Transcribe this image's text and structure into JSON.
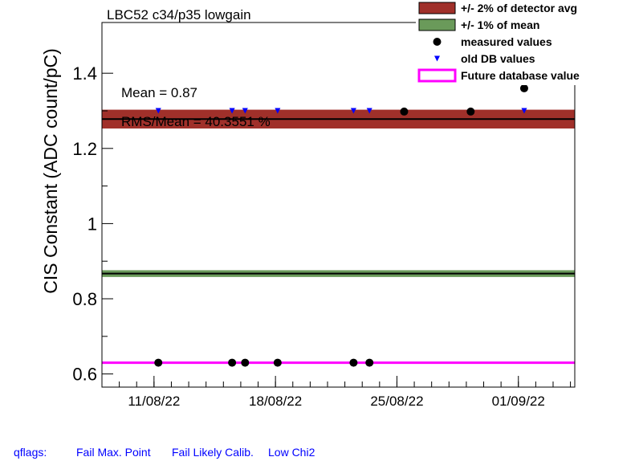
{
  "chart_data": {
    "type": "scatter",
    "title": "LBC52 c34/p35 lowgain",
    "ylabel": "CIS Constant (ADC count/pC)",
    "xlabel": "",
    "x_tick_labels": [
      "11/08/22",
      "18/08/22",
      "25/08/22",
      "01/09/22"
    ],
    "y_tick_labels": [
      "0.6",
      "0.8",
      "1",
      "1.2",
      "1.4"
    ],
    "y_ticks": [
      0.6,
      0.8,
      1.0,
      1.2,
      1.4
    ],
    "ylim": [
      0.565,
      1.535
    ],
    "x_tick_dates": [
      "2022-08-11",
      "2022-08-18",
      "2022-08-25",
      "2022-09-01"
    ],
    "x_range": [
      "2022-08-08T00:00",
      "2022-09-04T06:00"
    ],
    "stats": {
      "mean_text": "Mean = 0.87",
      "rms_text": "RMS/Mean = 40.3551 %"
    },
    "bands": {
      "detector_avg": {
        "center": 1.278,
        "low": 1.253,
        "high": 1.303,
        "color": "#a0302a"
      },
      "mean": {
        "center": 0.867,
        "low": 0.858,
        "high": 0.876,
        "color": "#6a9a5a"
      }
    },
    "future_db_value": 0.63,
    "series": [
      {
        "name": "measured values",
        "color": "#000000",
        "marker": "circle",
        "points": [
          {
            "x": "2022-08-11T06:00",
            "y": 0.63
          },
          {
            "x": "2022-08-15T12:00",
            "y": 0.63
          },
          {
            "x": "2022-08-16T06:00",
            "y": 0.63
          },
          {
            "x": "2022-08-18T03:00",
            "y": 0.63
          },
          {
            "x": "2022-08-22T12:00",
            "y": 0.63
          },
          {
            "x": "2022-08-23T10:00",
            "y": 0.63
          },
          {
            "x": "2022-08-25T10:00",
            "y": 1.298
          },
          {
            "x": "2022-08-29T06:00",
            "y": 1.298
          },
          {
            "x": "2022-09-01T08:00",
            "y": 1.36
          }
        ]
      },
      {
        "name": "old DB values",
        "color": "#0000ff",
        "marker": "triangle-down",
        "points": [
          {
            "x": "2022-08-11T06:00",
            "y": 1.3
          },
          {
            "x": "2022-08-15T12:00",
            "y": 1.3
          },
          {
            "x": "2022-08-16T06:00",
            "y": 1.3
          },
          {
            "x": "2022-08-18T03:00",
            "y": 1.3
          },
          {
            "x": "2022-08-22T12:00",
            "y": 1.3
          },
          {
            "x": "2022-08-23T10:00",
            "y": 1.3
          },
          {
            "x": "2022-09-01T08:00",
            "y": 1.3
          }
        ]
      }
    ],
    "legend": {
      "placement": "top-right",
      "entries": [
        {
          "label": "+/- 2% of detector avg",
          "kind": "box",
          "color": "#a0302a"
        },
        {
          "label": "+/- 1% of mean",
          "kind": "box",
          "color": "#6a9a5a"
        },
        {
          "label": "measured values",
          "kind": "circle",
          "color": "#000000"
        },
        {
          "label": "old DB values",
          "kind": "triangle",
          "color": "#0000ff"
        },
        {
          "label": "Future database value",
          "kind": "line",
          "color": "#ff00ff"
        }
      ]
    }
  },
  "qflags": {
    "label": "qflags:",
    "items": [
      "Fail Max. Point",
      "Fail Likely Calib.",
      "Low Chi2"
    ]
  }
}
